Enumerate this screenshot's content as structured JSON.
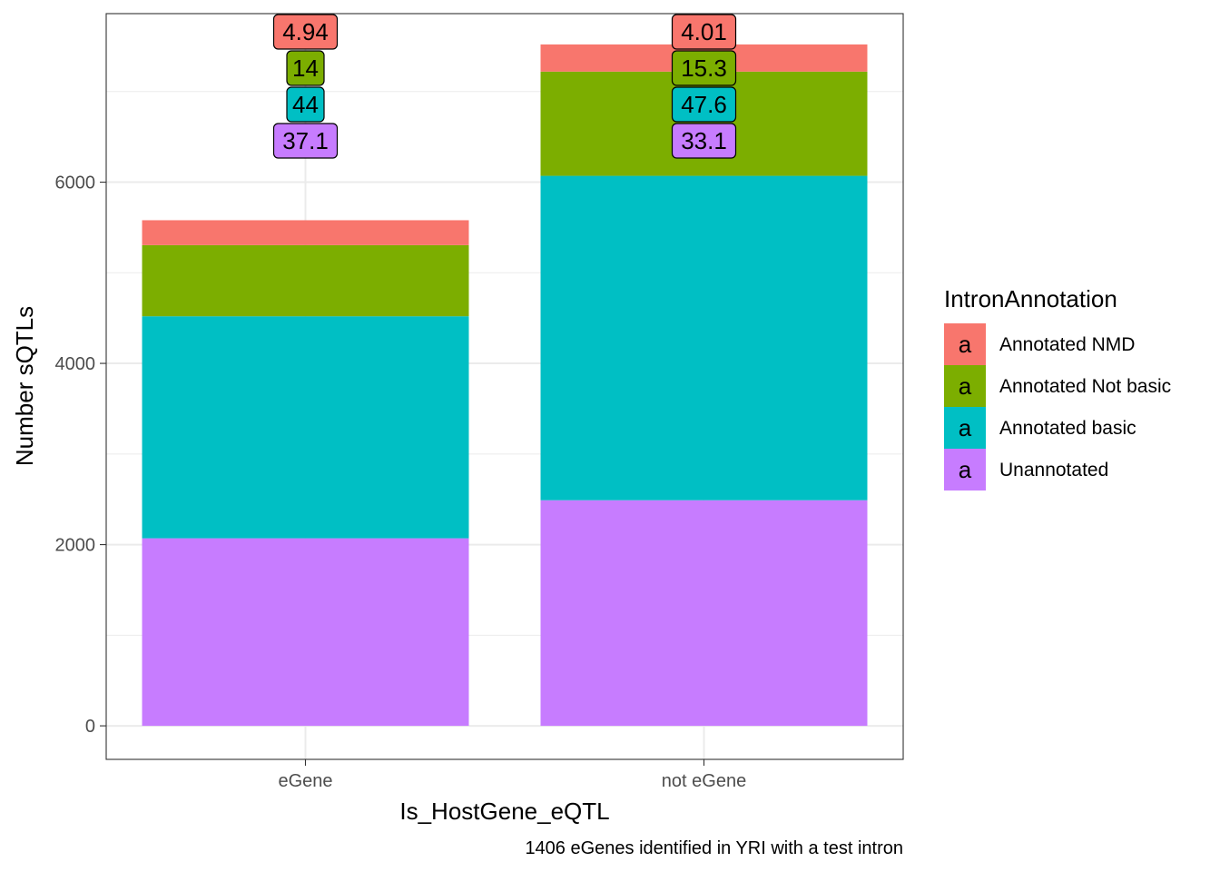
{
  "chart_data": {
    "type": "bar",
    "stacked": true,
    "xlabel": "Is_HostGene_eQTL",
    "ylabel": "Number sQTLs",
    "caption": "1406 eGenes identified in YRI with a test intron",
    "categories": [
      "eGene",
      "not eGene"
    ],
    "ylim": [
      -370,
      7860
    ],
    "y_ticks": [
      0,
      2000,
      4000,
      6000
    ],
    "grid": true,
    "legend": {
      "title": "IntronAnnotation",
      "position": "right",
      "key_glyph": "a"
    },
    "series": [
      {
        "name": "Unannotated",
        "color": "#C77CFF",
        "values": [
          2070,
          2490
        ],
        "percent_labels": [
          "37.1",
          "33.1"
        ]
      },
      {
        "name": "Annotated basic",
        "color": "#00BFC4",
        "values": [
          2450,
          3580
        ],
        "percent_labels": [
          "44",
          "47.6"
        ]
      },
      {
        "name": "Annotated Not basic",
        "color": "#7CAE00",
        "values": [
          785,
          1150
        ],
        "percent_labels": [
          "14",
          "15.3"
        ]
      },
      {
        "name": "Annotated NMD",
        "color": "#F8766D",
        "values": [
          275,
          300
        ],
        "percent_labels": [
          "4.94",
          "4.01"
        ]
      }
    ],
    "legend_order": [
      "Annotated NMD",
      "Annotated Not basic",
      "Annotated basic",
      "Unannotated"
    ]
  }
}
